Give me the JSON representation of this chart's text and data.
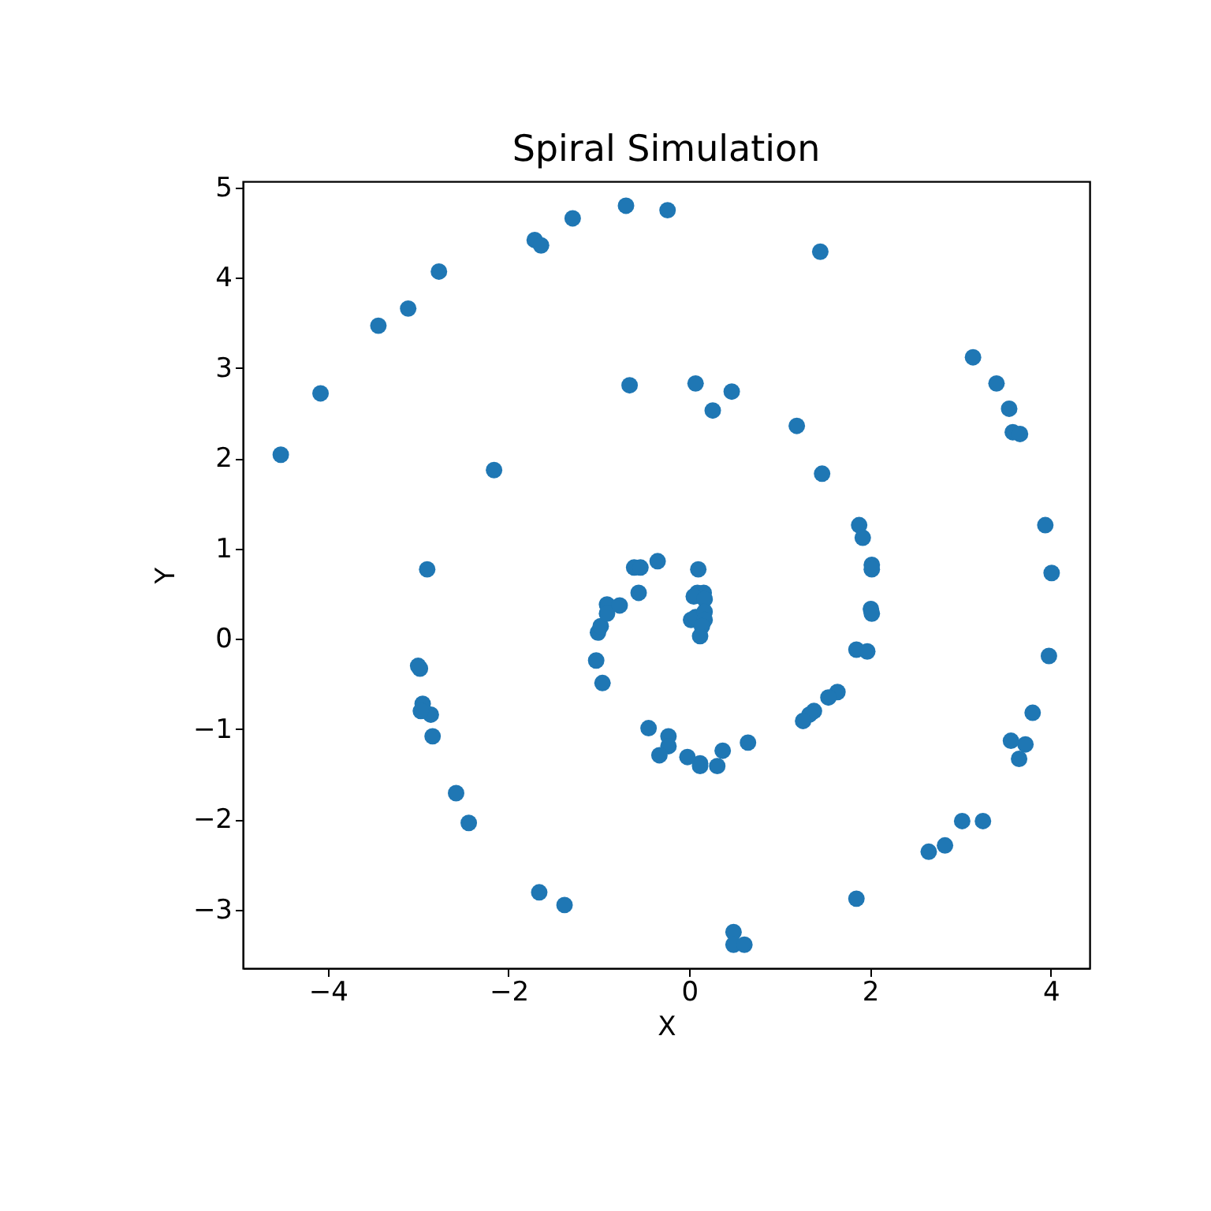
{
  "chart_data": {
    "type": "scatter",
    "title": "Spiral Simulation",
    "xlabel": "X",
    "ylabel": "Y",
    "xlim": [
      -4.94,
      4.43
    ],
    "ylim": [
      -3.65,
      5.07
    ],
    "xticks": [
      -4,
      -2,
      0,
      2,
      4
    ],
    "yticks": [
      -3,
      -2,
      -1,
      0,
      1,
      2,
      3,
      4,
      5
    ],
    "grid": false,
    "marker": "circle",
    "series": [
      {
        "color": "#1f77b4",
        "x": [
          -4.52,
          -4.08,
          -3.44,
          -3.11,
          -2.77,
          -1.71,
          -1.64,
          -1.29,
          -0.7,
          -0.24,
          1.45,
          3.14,
          3.4,
          3.54,
          3.58,
          3.66,
          3.94,
          4.01,
          3.98,
          3.8,
          3.72,
          3.56,
          3.65,
          3.02,
          3.25,
          2.83,
          2.65,
          1.85,
          0.49,
          0.49,
          0.61,
          -1.38,
          -1.66,
          -2.44,
          -2.58,
          -2.84,
          -2.86,
          -2.95,
          -2.97,
          -2.98,
          -3.0,
          -2.9,
          -2.16,
          -0.66,
          0.07,
          0.47,
          0.26,
          1.19,
          1.47,
          1.88,
          1.92,
          2.02,
          2.02,
          2.01,
          2.02,
          1.85,
          1.97,
          1.64,
          1.54,
          1.38,
          1.33,
          1.26,
          0.65,
          0.37,
          0.31,
          0.12,
          0.12,
          -0.02,
          -0.23,
          -0.23,
          -0.33,
          -0.45,
          -0.96,
          -1.03,
          -1.01,
          -0.98,
          -0.91,
          -0.91,
          -0.77,
          -0.56,
          -0.61,
          -0.54,
          -0.35,
          0.1,
          0.09,
          0.16,
          0.05,
          0.17,
          0.02,
          0.07,
          0.17,
          0.17,
          0.14,
          0.12
        ],
        "values": [
          2.04,
          2.72,
          3.47,
          3.66,
          4.07,
          4.42,
          4.36,
          4.66,
          4.8,
          4.75,
          4.29,
          3.12,
          2.83,
          2.55,
          2.29,
          2.27,
          1.26,
          0.73,
          -0.19,
          -0.82,
          -1.17,
          -1.13,
          -1.33,
          -2.02,
          -2.02,
          -2.29,
          -2.36,
          -2.88,
          -3.25,
          -3.39,
          -3.39,
          -2.95,
          -2.81,
          -2.04,
          -1.71,
          -1.08,
          -0.84,
          -0.72,
          -0.8,
          -0.33,
          -0.3,
          0.77,
          1.87,
          2.81,
          2.83,
          2.74,
          2.53,
          2.36,
          1.83,
          1.26,
          1.12,
          0.82,
          0.77,
          0.33,
          0.28,
          -0.12,
          -0.14,
          -0.59,
          -0.65,
          -0.8,
          -0.84,
          -0.91,
          -1.15,
          -1.24,
          -1.41,
          -1.38,
          -1.41,
          -1.31,
          -1.08,
          -1.19,
          -1.29,
          -0.99,
          -0.49,
          -0.24,
          0.07,
          0.14,
          0.38,
          0.28,
          0.37,
          0.51,
          0.79,
          0.79,
          0.86,
          0.77,
          0.51,
          0.51,
          0.47,
          0.44,
          0.21,
          0.24,
          0.3,
          0.21,
          0.14,
          0.03
        ]
      }
    ]
  }
}
